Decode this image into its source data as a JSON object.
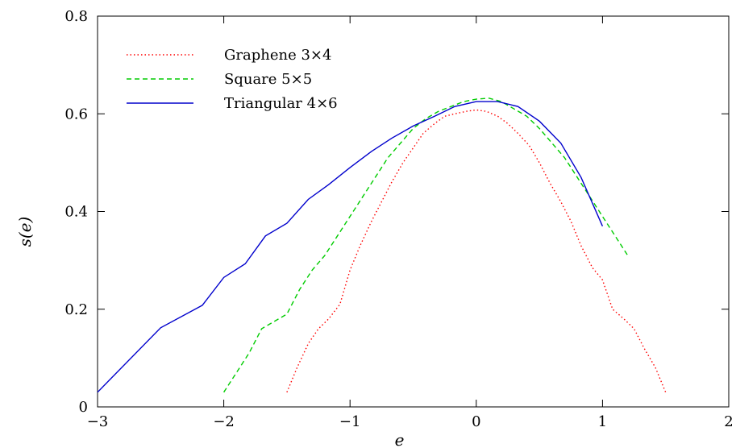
{
  "chart_data": {
    "type": "line",
    "xlabel": "e",
    "ylabel": "s(e)",
    "xlim": [
      -3,
      2
    ],
    "ylim": [
      0,
      0.8
    ],
    "xticks": [
      "−3",
      "−2",
      "−1",
      "0",
      "1",
      "2"
    ],
    "yticks": [
      "0",
      "0.2",
      "0.4",
      "0.6",
      "0.8"
    ],
    "legend_position": "top-left",
    "series": [
      {
        "name": "Graphene 3×4",
        "color": "#ff0000",
        "style": "dotted",
        "x": [
          -1.5,
          -1.42,
          -1.33,
          -1.25,
          -1.17,
          -1.08,
          -1.0,
          -0.92,
          -0.83,
          -0.75,
          -0.67,
          -0.58,
          -0.5,
          -0.42,
          -0.33,
          -0.25,
          -0.17,
          -0.08,
          0.0,
          0.08,
          0.17,
          0.25,
          0.33,
          0.42,
          0.5,
          0.58,
          0.67,
          0.75,
          0.83,
          0.92,
          1.0,
          1.08,
          1.17,
          1.25,
          1.33,
          1.42,
          1.5
        ],
        "y": [
          0.03,
          0.08,
          0.13,
          0.16,
          0.18,
          0.21,
          0.28,
          0.33,
          0.38,
          0.42,
          0.46,
          0.5,
          0.53,
          0.56,
          0.58,
          0.595,
          0.6,
          0.605,
          0.608,
          0.605,
          0.595,
          0.58,
          0.56,
          0.535,
          0.5,
          0.46,
          0.42,
          0.38,
          0.33,
          0.285,
          0.26,
          0.2,
          0.18,
          0.16,
          0.12,
          0.08,
          0.03
        ]
      },
      {
        "name": "Square 5×5",
        "color": "#00cc00",
        "style": "dashed",
        "x": [
          -2.0,
          -1.9,
          -1.8,
          -1.7,
          -1.6,
          -1.5,
          -1.4,
          -1.3,
          -1.2,
          -1.1,
          -1.0,
          -0.9,
          -0.8,
          -0.7,
          -0.6,
          -0.5,
          -0.4,
          -0.3,
          -0.2,
          -0.1,
          0.0,
          0.1,
          0.2,
          0.3,
          0.4,
          0.5,
          0.6,
          0.7,
          0.8,
          0.9,
          1.0,
          1.1,
          1.2
        ],
        "y": [
          0.03,
          0.07,
          0.11,
          0.16,
          0.175,
          0.19,
          0.24,
          0.28,
          0.31,
          0.35,
          0.39,
          0.43,
          0.47,
          0.51,
          0.54,
          0.57,
          0.59,
          0.605,
          0.615,
          0.625,
          0.63,
          0.632,
          0.625,
          0.61,
          0.595,
          0.57,
          0.54,
          0.51,
          0.47,
          0.43,
          0.39,
          0.35,
          0.31
        ]
      },
      {
        "name": "Triangular 4×6",
        "color": "#0000cc",
        "style": "solid",
        "x": [
          -3.0,
          -2.5,
          -2.17,
          -2.0,
          -1.83,
          -1.67,
          -1.5,
          -1.33,
          -1.17,
          -1.0,
          -0.83,
          -0.67,
          -0.5,
          -0.33,
          -0.17,
          0.0,
          0.17,
          0.33,
          0.5,
          0.67,
          0.83,
          1.0
        ],
        "y": [
          0.03,
          0.162,
          0.208,
          0.265,
          0.293,
          0.35,
          0.376,
          0.425,
          0.455,
          0.49,
          0.523,
          0.55,
          0.575,
          0.595,
          0.615,
          0.625,
          0.625,
          0.615,
          0.585,
          0.54,
          0.47,
          0.37
        ]
      }
    ]
  }
}
